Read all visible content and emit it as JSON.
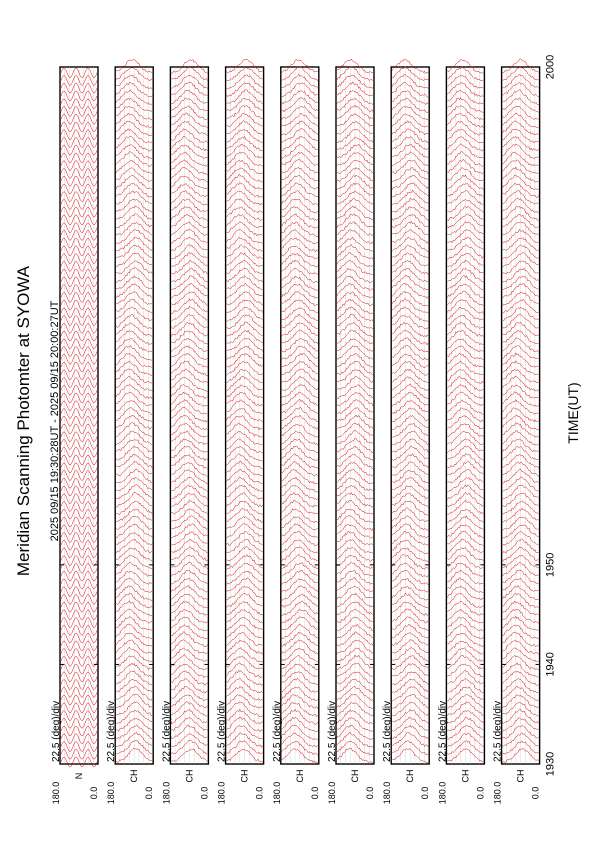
{
  "chart_data": {
    "type": "line",
    "title": "Meridian Scanning Photomter at SYOWA",
    "time_range": "2025 09/15 19:30:28UT - 2025 09/15 20:00:27UT",
    "xlabel": "TIME(UT)",
    "x_ticks": [
      "1930",
      "1940",
      "1950",
      "2000"
    ],
    "xlim": [
      1930,
      2000
    ],
    "trace_color": "#e00000",
    "panels": [
      {
        "channel": "N",
        "scale": "22.5 (deg)/div",
        "y_top": "180.0",
        "y_bottom": "0.0",
        "traces": 90
      },
      {
        "channel": "CH",
        "scale": "22.5 (deg)/div",
        "y_top": "180.0",
        "y_bottom": "0.0",
        "traces": 90
      },
      {
        "channel": "CH",
        "scale": "22.5 (deg)/div",
        "y_top": "180.0",
        "y_bottom": "0.0",
        "traces": 90
      },
      {
        "channel": "CH",
        "scale": "22.5 (deg)/div",
        "y_top": "180.0",
        "y_bottom": "0.0",
        "traces": 90
      },
      {
        "channel": "CH",
        "scale": "22.5 (deg)/div",
        "y_top": "180.0",
        "y_bottom": "0.0",
        "traces": 90
      },
      {
        "channel": "CH",
        "scale": "22.5 (deg)/div",
        "y_top": "180.0",
        "y_bottom": "0.0",
        "traces": 90
      },
      {
        "channel": "CH",
        "scale": "22.5 (deg)/div",
        "y_top": "180.0",
        "y_bottom": "0.0",
        "traces": 90
      },
      {
        "channel": "CH",
        "scale": "22.5 (deg)/div",
        "y_top": "180.0",
        "y_bottom": "0.0",
        "traces": 90
      },
      {
        "channel": "CH",
        "scale": "22.5 (deg)/div",
        "y_top": "180.0",
        "y_bottom": "0.0",
        "traces": 90
      }
    ]
  }
}
